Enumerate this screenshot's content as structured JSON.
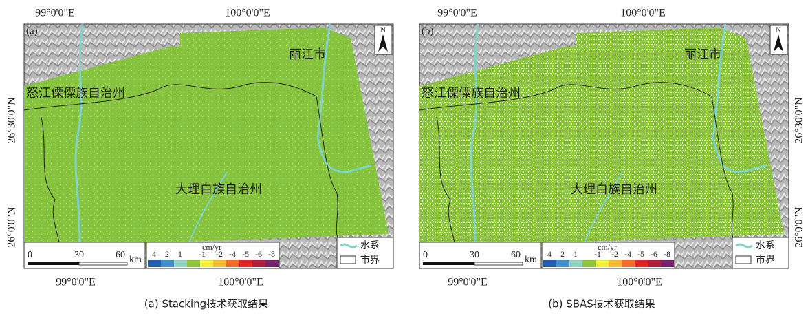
{
  "panels": [
    {
      "label": "(a)",
      "top_lon": [
        "99°0'0\"E",
        "100°0'0\"E"
      ],
      "bottom_lon": [
        "99°0'0\"E",
        "100°0'0\"E"
      ],
      "lat": [
        "26°30'0\"N",
        "26°0'0\"N"
      ],
      "places": [
        "丽江市",
        "怒江傈僳族自治州",
        "大理白族自治州"
      ],
      "north": "N",
      "scale": {
        "ticks": [
          "0",
          "30",
          "60"
        ],
        "unit": "km"
      },
      "colorbar": {
        "unit": "cm/yr",
        "labels": [
          "4",
          "2",
          "1",
          "-1",
          "-2",
          "-4",
          "-5",
          "-6",
          "-8"
        ],
        "colors": [
          "#1f5fb0",
          "#3c8fd0",
          "#8fd0c0",
          "#8cc63f",
          "#f2ee3a",
          "#f7b733",
          "#f26b2a",
          "#e02424",
          "#b01e3a",
          "#7a1e6e"
        ]
      },
      "legend": [
        "水系",
        "市界"
      ],
      "caption": "(a) Stacking技术获取结果"
    },
    {
      "label": "(b)",
      "top_lon": [
        "99°0'0\"E",
        "100°0'0\"E"
      ],
      "bottom_lon": [
        "99°0'0\"E",
        "100°0'0\"E"
      ],
      "lat": [
        "26°30'0\"N",
        "26°0'0\"N"
      ],
      "places": [
        "丽江市",
        "怒江傈僳族自治州",
        "大理白族自治州"
      ],
      "north": "N",
      "scale": {
        "ticks": [
          "0",
          "30",
          "60"
        ],
        "unit": "km"
      },
      "colorbar": {
        "unit": "cm/yr",
        "labels": [
          "4",
          "2",
          "1",
          "-1",
          "-2",
          "-4",
          "-5",
          "-6",
          "-8"
        ],
        "colors": [
          "#1f5fb0",
          "#3c8fd0",
          "#8fd0c0",
          "#8cc63f",
          "#f2ee3a",
          "#f7b733",
          "#f26b2a",
          "#e02424",
          "#b01e3a",
          "#7a1e6e"
        ]
      },
      "legend": [
        "水系",
        "市界"
      ],
      "caption": "(b) SBAS技术获取结果"
    }
  ]
}
